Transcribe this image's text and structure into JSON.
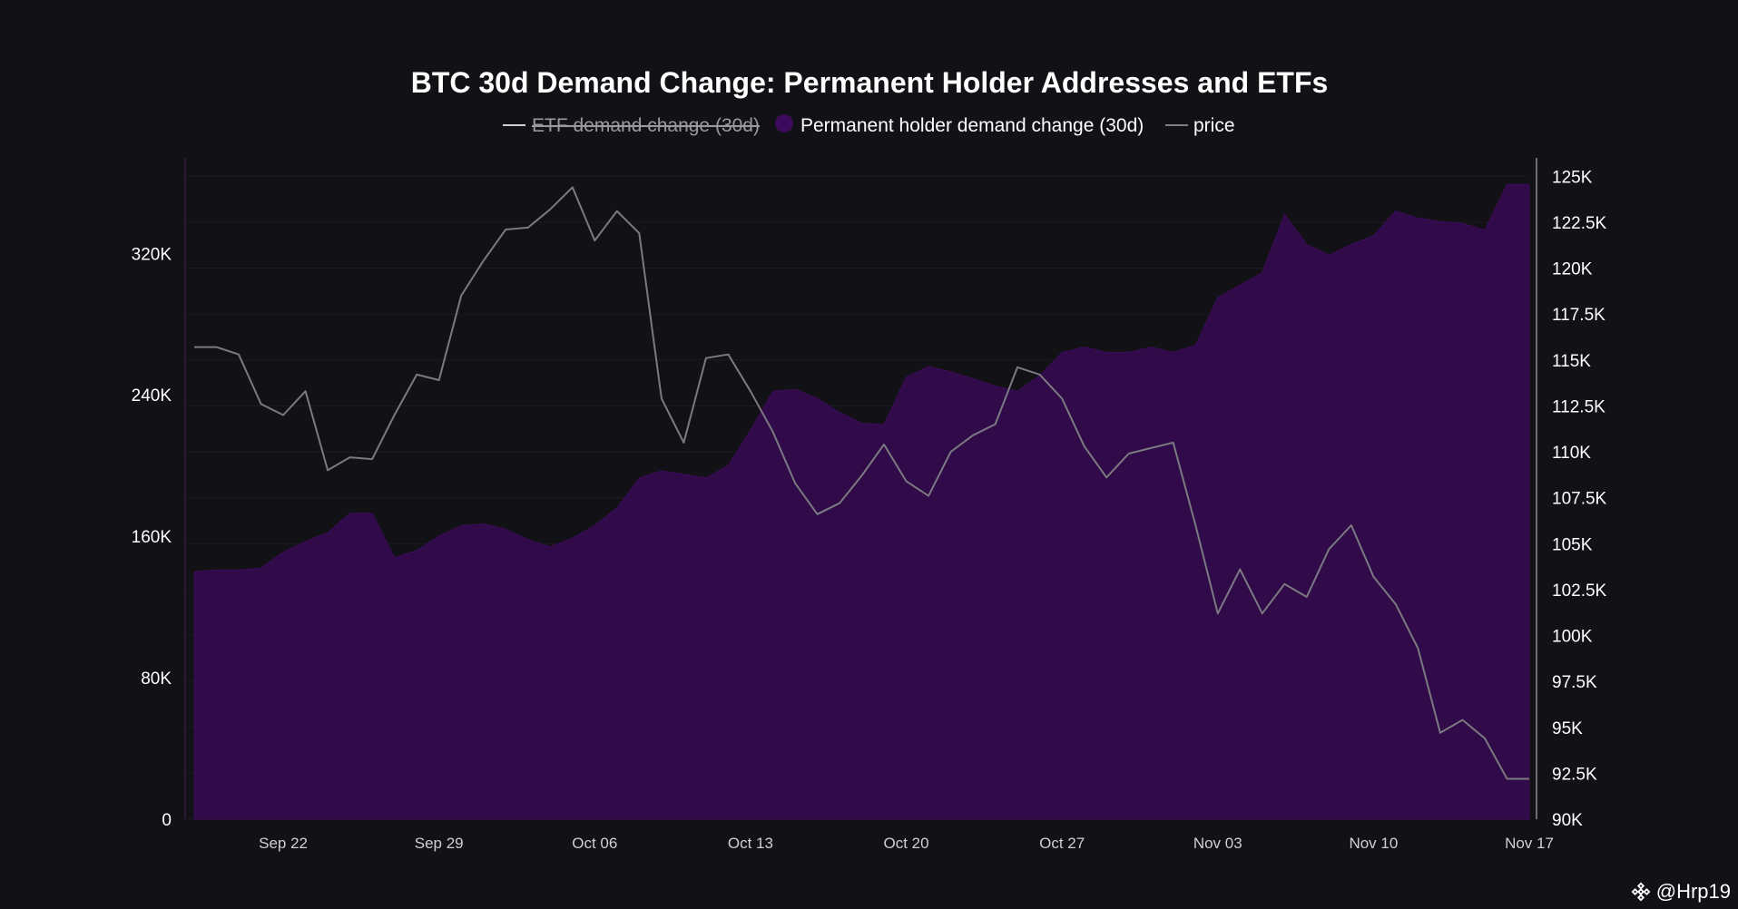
{
  "chart_data": {
    "type": "area",
    "title": "BTC 30d Demand Change: Permanent Holder Addresses and ETFs",
    "legend": [
      {
        "name": "ETF demand change (30d)",
        "active": false,
        "color": "#bdbdc3"
      },
      {
        "name": "Permanent holder demand change (30d)",
        "active": true,
        "color": "#310a4a"
      },
      {
        "name": "price",
        "active": true,
        "color": "#8a8a90"
      }
    ],
    "left_axis": {
      "ticks": [
        "0",
        "80K",
        "160K",
        "240K",
        "320K"
      ],
      "tick_values": [
        0,
        80000,
        160000,
        240000,
        320000
      ],
      "range": [
        0,
        374000
      ]
    },
    "right_axis": {
      "ticks": [
        "90K",
        "92.5K",
        "95K",
        "97.5K",
        "100K",
        "102.5K",
        "105K",
        "107.5K",
        "110K",
        "112.5K",
        "115K",
        "117.5K",
        "120K",
        "122.5K",
        "125K"
      ],
      "tick_values": [
        90000,
        92500,
        95000,
        97500,
        100000,
        102500,
        105000,
        107500,
        110000,
        112500,
        115000,
        117500,
        120000,
        122500,
        125000
      ],
      "range": [
        90000,
        126000
      ]
    },
    "x_axis": {
      "ticks": [
        "Sep 22",
        "Sep 29",
        "Oct 06",
        "Oct 13",
        "Oct 20",
        "Oct 27",
        "Nov 03",
        "Nov 10",
        "Nov 17"
      ],
      "tick_day_index": [
        4,
        11,
        18,
        25,
        32,
        39,
        46,
        53,
        60
      ]
    },
    "x_days": [
      0,
      1,
      2,
      3,
      4,
      5,
      6,
      7,
      8,
      9,
      10,
      11,
      12,
      13,
      14,
      15,
      16,
      17,
      18,
      19,
      20,
      21,
      22,
      23,
      24,
      25,
      26,
      27,
      28,
      29,
      30,
      31,
      32,
      33,
      34,
      35,
      36,
      37,
      38,
      39,
      40,
      41,
      42,
      43,
      44,
      45,
      46,
      47,
      48,
      49,
      50,
      51,
      52,
      53,
      54,
      55,
      56,
      57,
      58,
      59,
      60
    ],
    "series": [
      {
        "name": "Permanent holder demand change (30d)",
        "axis": "left",
        "values": [
          140000,
          141000,
          141000,
          142000,
          151000,
          157000,
          162000,
          173000,
          173000,
          148000,
          152000,
          160000,
          166000,
          167000,
          164000,
          158000,
          154000,
          159000,
          166000,
          176000,
          193000,
          197000,
          195000,
          193000,
          200000,
          220000,
          242000,
          243000,
          238000,
          230000,
          224000,
          223000,
          250000,
          256000,
          253000,
          249000,
          245000,
          242000,
          251000,
          264000,
          267000,
          264000,
          264000,
          267000,
          264000,
          268000,
          295000,
          302000,
          309000,
          342000,
          325000,
          319000,
          325000,
          330000,
          344000,
          340000,
          338000,
          337000,
          333000,
          359000,
          359000
        ]
      },
      {
        "name": "price",
        "axis": "right",
        "values": [
          115700,
          115700,
          115300,
          112600,
          112000,
          113300,
          109000,
          109700,
          109600,
          112000,
          114200,
          113900,
          118500,
          120400,
          122100,
          122200,
          123200,
          124400,
          121500,
          123100,
          121900,
          112900,
          110500,
          115100,
          115300,
          113300,
          111100,
          108300,
          106600,
          107200,
          108700,
          110400,
          108400,
          107600,
          110000,
          110900,
          111500,
          114600,
          114200,
          112900,
          110300,
          108600,
          109900,
          110200,
          110500,
          106000,
          101200,
          103600,
          101200,
          102800,
          102100,
          104700,
          106000,
          103200,
          101700,
          99300,
          94700,
          95400,
          94400,
          92200,
          92200
        ]
      }
    ]
  },
  "watermark": {
    "handle": "@Hrp19",
    "logo_icon": "binance-diamond-icon"
  }
}
